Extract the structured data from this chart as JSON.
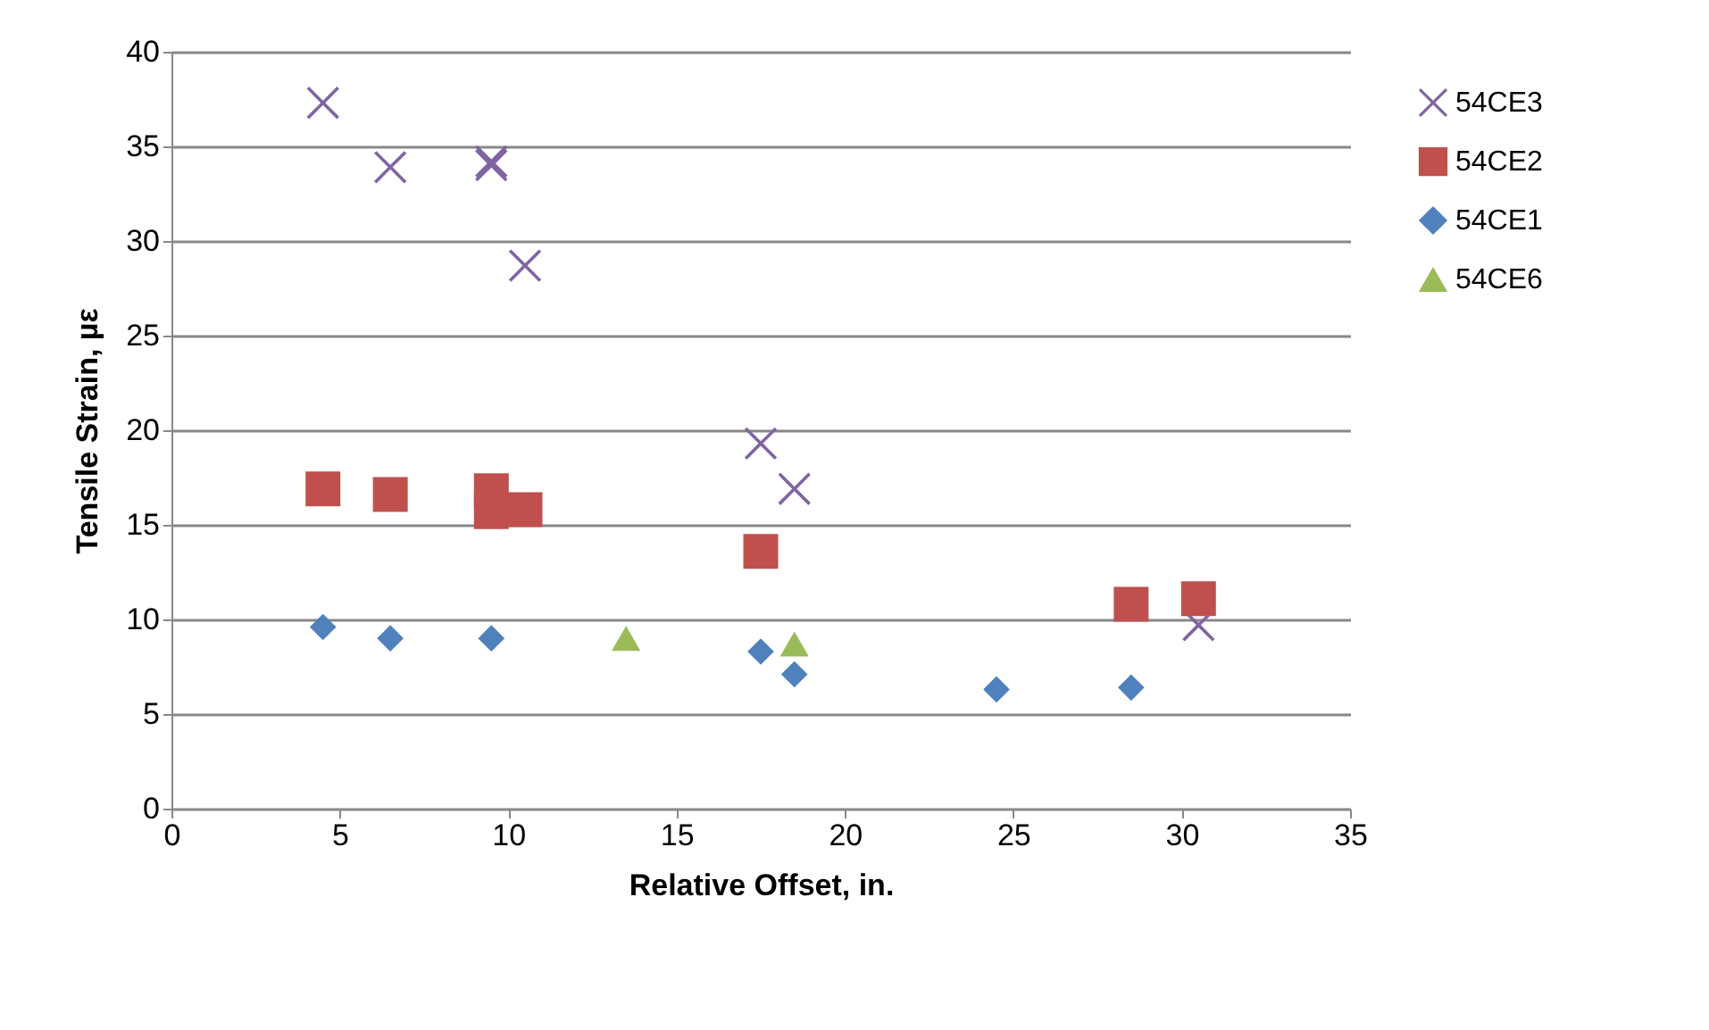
{
  "chart_data": {
    "type": "scatter",
    "xlabel": "Relative Offset, in.",
    "ylabel": "Tensile Strain, µε",
    "xlim": [
      0,
      35
    ],
    "xticks": [
      0,
      5,
      10,
      15,
      20,
      25,
      30,
      35
    ],
    "ylim": [
      0,
      40
    ],
    "yticks": [
      0,
      5,
      10,
      15,
      20,
      25,
      30,
      35,
      40
    ],
    "grid": "y",
    "legend": "right",
    "series": [
      {
        "name": "54CE3",
        "color": "#8064a2",
        "marker": "cross",
        "x": [
          4.5,
          6.5,
          9.5,
          9.5,
          10.5,
          17.5,
          18.5,
          30.5
        ],
        "values": [
          37.3,
          33.9,
          34.2,
          34.0,
          28.7,
          19.3,
          16.9,
          9.7
        ]
      },
      {
        "name": "54CE2",
        "color": "#c0504d",
        "marker": "square",
        "x": [
          4.5,
          6.5,
          9.5,
          9.5,
          10.5,
          17.5,
          28.5,
          30.5
        ],
        "values": [
          16.9,
          16.6,
          16.8,
          15.7,
          15.8,
          13.6,
          10.8,
          11.1
        ]
      },
      {
        "name": "54CE1",
        "color": "#4f81bd",
        "marker": "diamond",
        "x": [
          4.5,
          6.5,
          9.5,
          17.5,
          18.5,
          24.5,
          28.5
        ],
        "values": [
          9.6,
          9.0,
          9.0,
          8.3,
          7.1,
          6.3,
          6.4
        ]
      },
      {
        "name": "54CE6",
        "color": "#9bbb59",
        "marker": "triangle",
        "x": [
          13.5,
          18.5
        ],
        "values": [
          9.0,
          8.7
        ]
      }
    ]
  }
}
